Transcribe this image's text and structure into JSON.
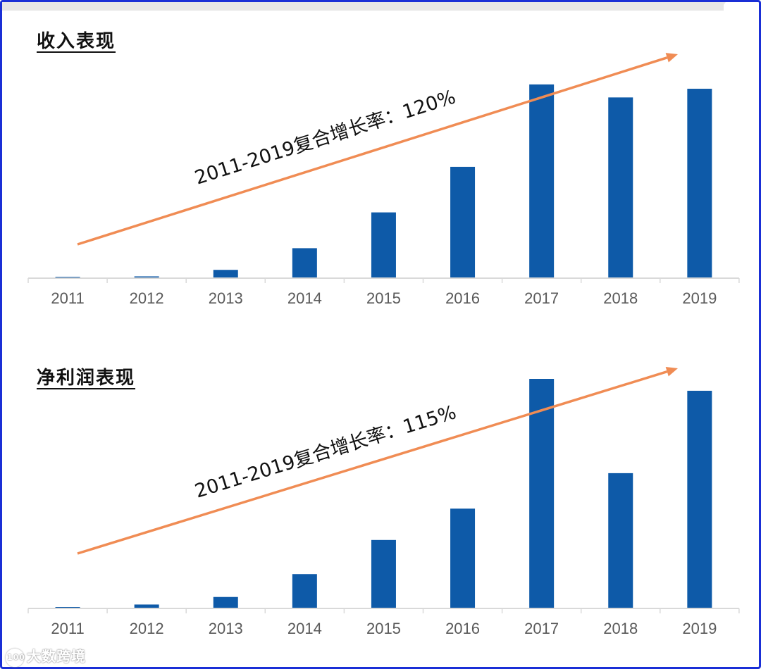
{
  "chart_data": [
    {
      "type": "bar",
      "title": "收入表现",
      "categories": [
        "2011",
        "2012",
        "2013",
        "2014",
        "2015",
        "2016",
        "2017",
        "2018",
        "2019"
      ],
      "values": [
        0.0,
        0.5,
        3.5,
        13.5,
        30,
        51,
        89,
        83,
        87
      ],
      "ylim": [
        0,
        100
      ],
      "annotation": "2011-2019复合增长率：120%",
      "grid": false,
      "legend": "none",
      "colors": {
        "bar": "#0e5aa8",
        "arrow": "#f08c54"
      }
    },
    {
      "type": "bar",
      "title": "净利润表现",
      "categories": [
        "2011",
        "2012",
        "2013",
        "2014",
        "2015",
        "2016",
        "2017",
        "2018",
        "2019"
      ],
      "values": [
        0.2,
        1.4,
        4.7,
        14.7,
        29.6,
        43.3,
        100,
        58.8,
        94.8
      ],
      "ylim": [
        0,
        100
      ],
      "annotation": "2011-2019复合增长率：115%",
      "grid": false,
      "legend": "none",
      "colors": {
        "bar": "#0e5aa8",
        "arrow": "#f08c54"
      }
    }
  ],
  "watermark": {
    "logo": "100",
    "text": "大数跨境"
  }
}
